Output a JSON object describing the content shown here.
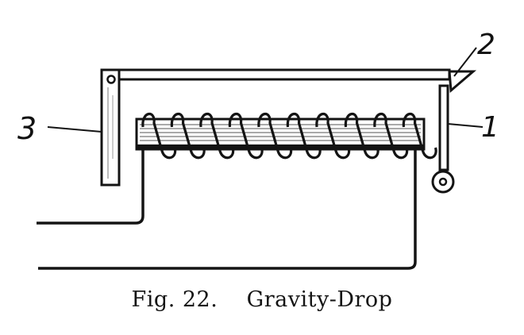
{
  "caption": {
    "fig_label": "Fig. 22.",
    "title": "Gravity-Drop"
  },
  "labels": {
    "one": "1",
    "two": "2",
    "three": "3"
  },
  "colors": {
    "ink": "#141414",
    "paper": "#ffffff"
  }
}
